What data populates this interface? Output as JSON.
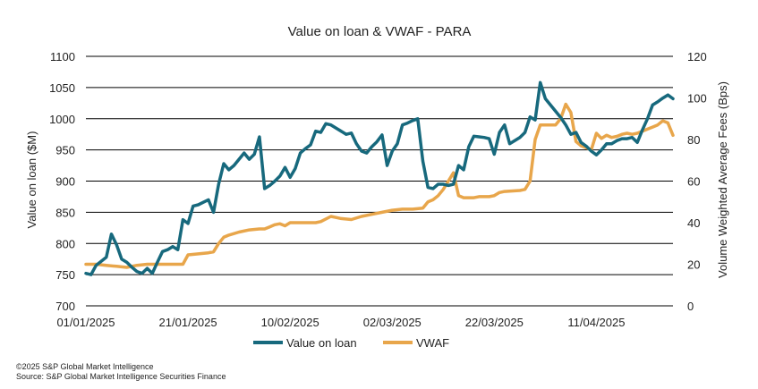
{
  "chart_data": {
    "type": "line",
    "title": "Value on loan & VWAF - PARA",
    "ylabel": "Value on loan ($M)",
    "y2label": "Volume Weighted Average Fees (Bps)",
    "ylim": [
      700,
      1100
    ],
    "y2lim": [
      0,
      120
    ],
    "yticks": [
      "700",
      "750",
      "800",
      "850",
      "900",
      "950",
      "1000",
      "1050",
      "1100"
    ],
    "y2ticks": [
      "0",
      "20",
      "40",
      "60",
      "80",
      "100",
      "120"
    ],
    "xticks": [
      "01/01/2025",
      "21/01/2025",
      "10/02/2025",
      "02/03/2025",
      "22/03/2025",
      "11/04/2025"
    ],
    "x_range_days": [
      0,
      115
    ],
    "grid": true,
    "legend_position": "bottom",
    "colors": {
      "value_on_loan": "#17697d",
      "vwaf": "#e8a64b"
    },
    "series": [
      {
        "name": "Value on loan",
        "axis": "left",
        "x": [
          0,
          1,
          2,
          4,
          5,
          6,
          7,
          8,
          9,
          10,
          11,
          12,
          13,
          14,
          15,
          16,
          17,
          18,
          19,
          20,
          21,
          22,
          23,
          24,
          25,
          26,
          27,
          28,
          29,
          30,
          31,
          32,
          33,
          34,
          35,
          36,
          37,
          38,
          39,
          40,
          41,
          42,
          43,
          44,
          45,
          46,
          47,
          48,
          49,
          50,
          51,
          52,
          53,
          54,
          55,
          56,
          57,
          58,
          59,
          60,
          61,
          62,
          63,
          64,
          65,
          66,
          67,
          68,
          69,
          70,
          71,
          72,
          73,
          74,
          75,
          76,
          77,
          78,
          79,
          80,
          81,
          82,
          83,
          84,
          85,
          86,
          87,
          88,
          89,
          90,
          91,
          92,
          93,
          94,
          95,
          96,
          97,
          98,
          99,
          100,
          101,
          102,
          103,
          104,
          105,
          106,
          107,
          108,
          109,
          110,
          111,
          112,
          113,
          114,
          115
        ],
        "values": [
          752,
          750,
          765,
          778,
          815,
          798,
          775,
          770,
          762,
          755,
          752,
          760,
          752,
          770,
          787,
          790,
          795,
          790,
          838,
          832,
          860,
          862,
          866,
          870,
          850,
          895,
          928,
          918,
          925,
          935,
          945,
          935,
          943,
          971,
          888,
          893,
          900,
          908,
          922,
          906,
          920,
          945,
          952,
          958,
          980,
          978,
          992,
          990,
          985,
          980,
          975,
          977,
          960,
          948,
          945,
          955,
          963,
          974,
          925,
          948,
          960,
          990,
          993,
          997,
          1000,
          932,
          890,
          888,
          895,
          895,
          893,
          895,
          925,
          918,
          955,
          972,
          971,
          970,
          968,
          943,
          978,
          990,
          960,
          965,
          970,
          978,
          1003,
          998,
          1058,
          1032,
          1022,
          1012,
          1002,
          990,
          975,
          978,
          962,
          956,
          948,
          942,
          950,
          960,
          960,
          965,
          968,
          968,
          970,
          962,
          982,
          1000,
          1022,
          1027,
          1033,
          1038,
          1032
        ]
      },
      {
        "name": "VWAF",
        "axis": "right",
        "x": [
          0,
          2,
          4,
          6,
          8,
          10,
          12,
          14,
          16,
          18,
          19,
          20,
          22,
          24,
          25,
          26,
          27,
          28,
          30,
          32,
          34,
          35,
          36,
          37,
          38,
          39,
          40,
          41,
          42,
          45,
          46,
          48,
          49,
          50,
          52,
          54,
          56,
          58,
          60,
          62,
          64,
          66,
          67,
          68,
          69,
          70,
          71,
          72,
          73,
          74,
          75,
          76,
          77,
          78,
          79,
          80,
          81,
          82,
          85,
          86,
          87,
          88,
          89,
          90,
          91,
          92,
          93,
          94,
          95,
          96,
          97,
          98,
          99,
          100,
          101,
          102,
          103,
          104,
          105,
          106,
          107,
          108,
          109,
          110,
          111,
          112,
          113,
          114,
          115
        ],
        "values": [
          20,
          20,
          19.5,
          19,
          18.5,
          19.5,
          20,
          20,
          20,
          20,
          20,
          24.5,
          25,
          25.5,
          26,
          30,
          33,
          34,
          35.5,
          36.5,
          37,
          37,
          38,
          39,
          39.5,
          38.5,
          40,
          40,
          40,
          40,
          40.5,
          43,
          42.5,
          42,
          41.5,
          43,
          44,
          45,
          46,
          46.5,
          46.5,
          47,
          50,
          51,
          53,
          56,
          60,
          64,
          53,
          52,
          52,
          52,
          52.5,
          52.5,
          52.5,
          53,
          54.5,
          55,
          55.5,
          56,
          60,
          80,
          87,
          87,
          87,
          87,
          90,
          97,
          93,
          79,
          77,
          76,
          75,
          83,
          80.5,
          82,
          81,
          81.5,
          82.5,
          83,
          82.5,
          83,
          84,
          85,
          86,
          87,
          89,
          88,
          82
        ]
      }
    ]
  },
  "footer": {
    "copyright": "©2025 S&P Global Market Intelligence",
    "source": "Source: S&P Global Market Intelligence Securities Finance"
  }
}
